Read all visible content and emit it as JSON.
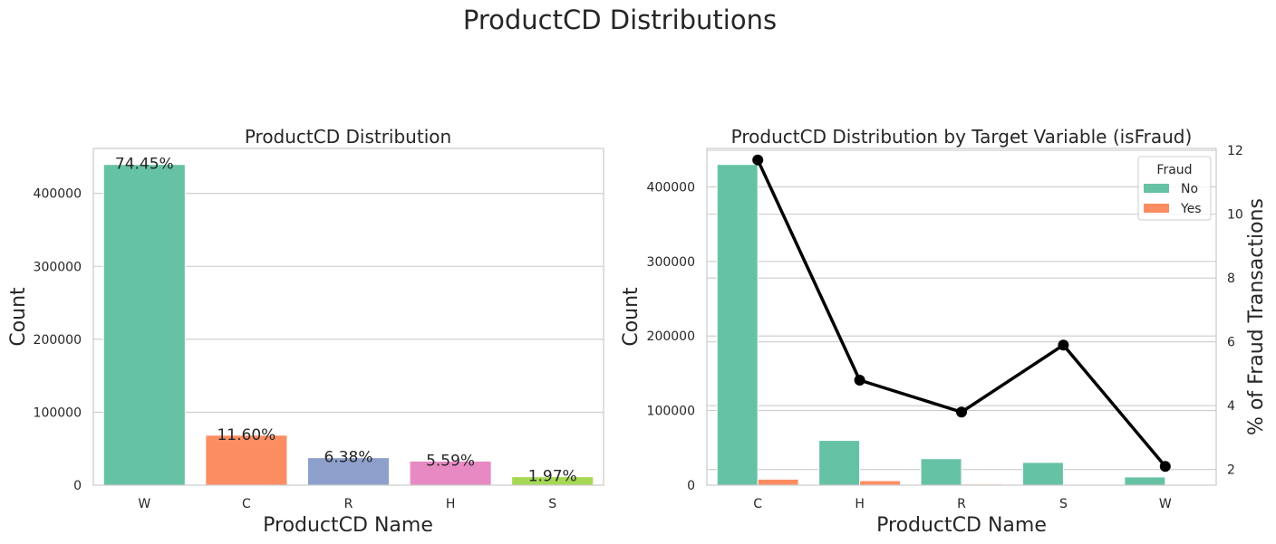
{
  "suptitle": "ProductCD Distributions",
  "colors": {
    "W": "#66c2a5",
    "C": "#fc8d62",
    "R": "#8da0cb",
    "H": "#e78ac3",
    "S": "#a6d854",
    "no": "#66c2a5",
    "yes": "#fc8d62",
    "line": "#000000"
  },
  "chart_data": [
    {
      "type": "bar",
      "title": "ProductCD Distribution",
      "xlabel": "ProductCD Name",
      "ylabel": "Count",
      "categories": [
        "W",
        "C",
        "R",
        "H",
        "S"
      ],
      "values": [
        439670,
        68519,
        37699,
        33024,
        11628
      ],
      "labels": [
        "74.45%",
        "11.60%",
        "6.38%",
        "5.59%",
        "1.97%"
      ],
      "ylim": [
        0,
        461654
      ],
      "yticks": [
        0,
        100000,
        200000,
        300000,
        400000
      ],
      "ytick_labels": [
        "0",
        "100000",
        "200000",
        "300000",
        "400000"
      ],
      "grid": true
    },
    {
      "type": "bar",
      "title": "ProductCD Distribution by Target Variable (isFraud)",
      "xlabel": "ProductCD Name",
      "ylabel": "Count",
      "ylabel_right": "% of Fraud Transactions",
      "categories": [
        "C",
        "H",
        "R",
        "S",
        "W"
      ],
      "series": [
        {
          "name": "No",
          "values": [
            430000,
            60000,
            35500,
            30500,
            11000
          ]
        },
        {
          "name": "Yes",
          "values": [
            8000,
            6000,
            1500,
            500,
            500
          ]
        }
      ],
      "line_series": {
        "values": [
          11.7,
          4.8,
          3.8,
          5.9,
          2.1
        ]
      },
      "ylim": [
        0,
        451500
      ],
      "yticks": [
        0,
        100000,
        200000,
        300000,
        400000
      ],
      "ytick_labels": [
        "0",
        "100000",
        "200000",
        "300000",
        "400000"
      ],
      "ylim_right": [
        1.51,
        12.06
      ],
      "yticks_right": [
        2,
        4,
        6,
        8,
        10,
        12
      ],
      "ytick_labels_right": [
        "2",
        "4",
        "6",
        "8",
        "10",
        "12"
      ],
      "legend": {
        "title": "Fraud",
        "entries": [
          "No",
          "Yes"
        ],
        "placement": "upper-right"
      },
      "grid": true
    }
  ]
}
